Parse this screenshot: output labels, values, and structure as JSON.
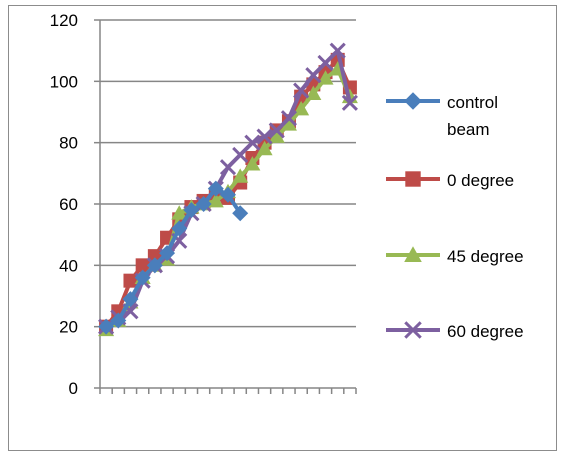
{
  "chart_data": {
    "type": "line",
    "title": "",
    "xlabel": "",
    "ylabel": "",
    "ylim": [
      0,
      120
    ],
    "yticks": [
      0,
      20,
      40,
      60,
      80,
      100,
      120
    ],
    "grid": "horizontal",
    "legend_position": "right",
    "x": [
      1,
      2,
      3,
      4,
      5,
      6,
      7,
      8,
      9,
      10,
      11,
      12,
      13,
      14,
      15,
      16,
      17,
      18,
      19,
      20,
      21
    ],
    "series": [
      {
        "name": "control beam",
        "color": "#4a7ebb",
        "marker": "diamond",
        "values": [
          20,
          22,
          29,
          36,
          40,
          44,
          52,
          58,
          60,
          65,
          63,
          57,
          null,
          null,
          null,
          null,
          null,
          null,
          null,
          null,
          null
        ]
      },
      {
        "name": "0 degree",
        "color": "#be4b48",
        "marker": "square",
        "values": [
          20,
          25,
          35,
          40,
          43,
          49,
          55,
          59,
          61,
          63,
          62,
          67,
          75,
          80,
          84,
          87,
          95,
          99,
          103,
          107,
          98
        ]
      },
      {
        "name": "45 degree",
        "color": "#98b954",
        "marker": "triangle",
        "values": [
          19,
          22,
          28,
          36,
          40,
          42,
          57,
          59,
          60,
          61,
          64,
          69,
          73,
          78,
          82,
          86,
          91,
          96,
          101,
          104,
          95
        ]
      },
      {
        "name": "60 degree",
        "color": "#7d60a0",
        "marker": "x",
        "values": [
          20,
          23,
          25,
          35,
          40,
          43,
          48,
          57,
          60,
          65,
          72,
          76,
          80,
          82,
          84,
          88,
          97,
          102,
          106,
          110,
          93
        ]
      }
    ],
    "legend_labels": [
      [
        "control",
        "beam"
      ],
      [
        "0 degree"
      ],
      [
        "45 degree"
      ],
      [
        "60 degree"
      ]
    ]
  }
}
